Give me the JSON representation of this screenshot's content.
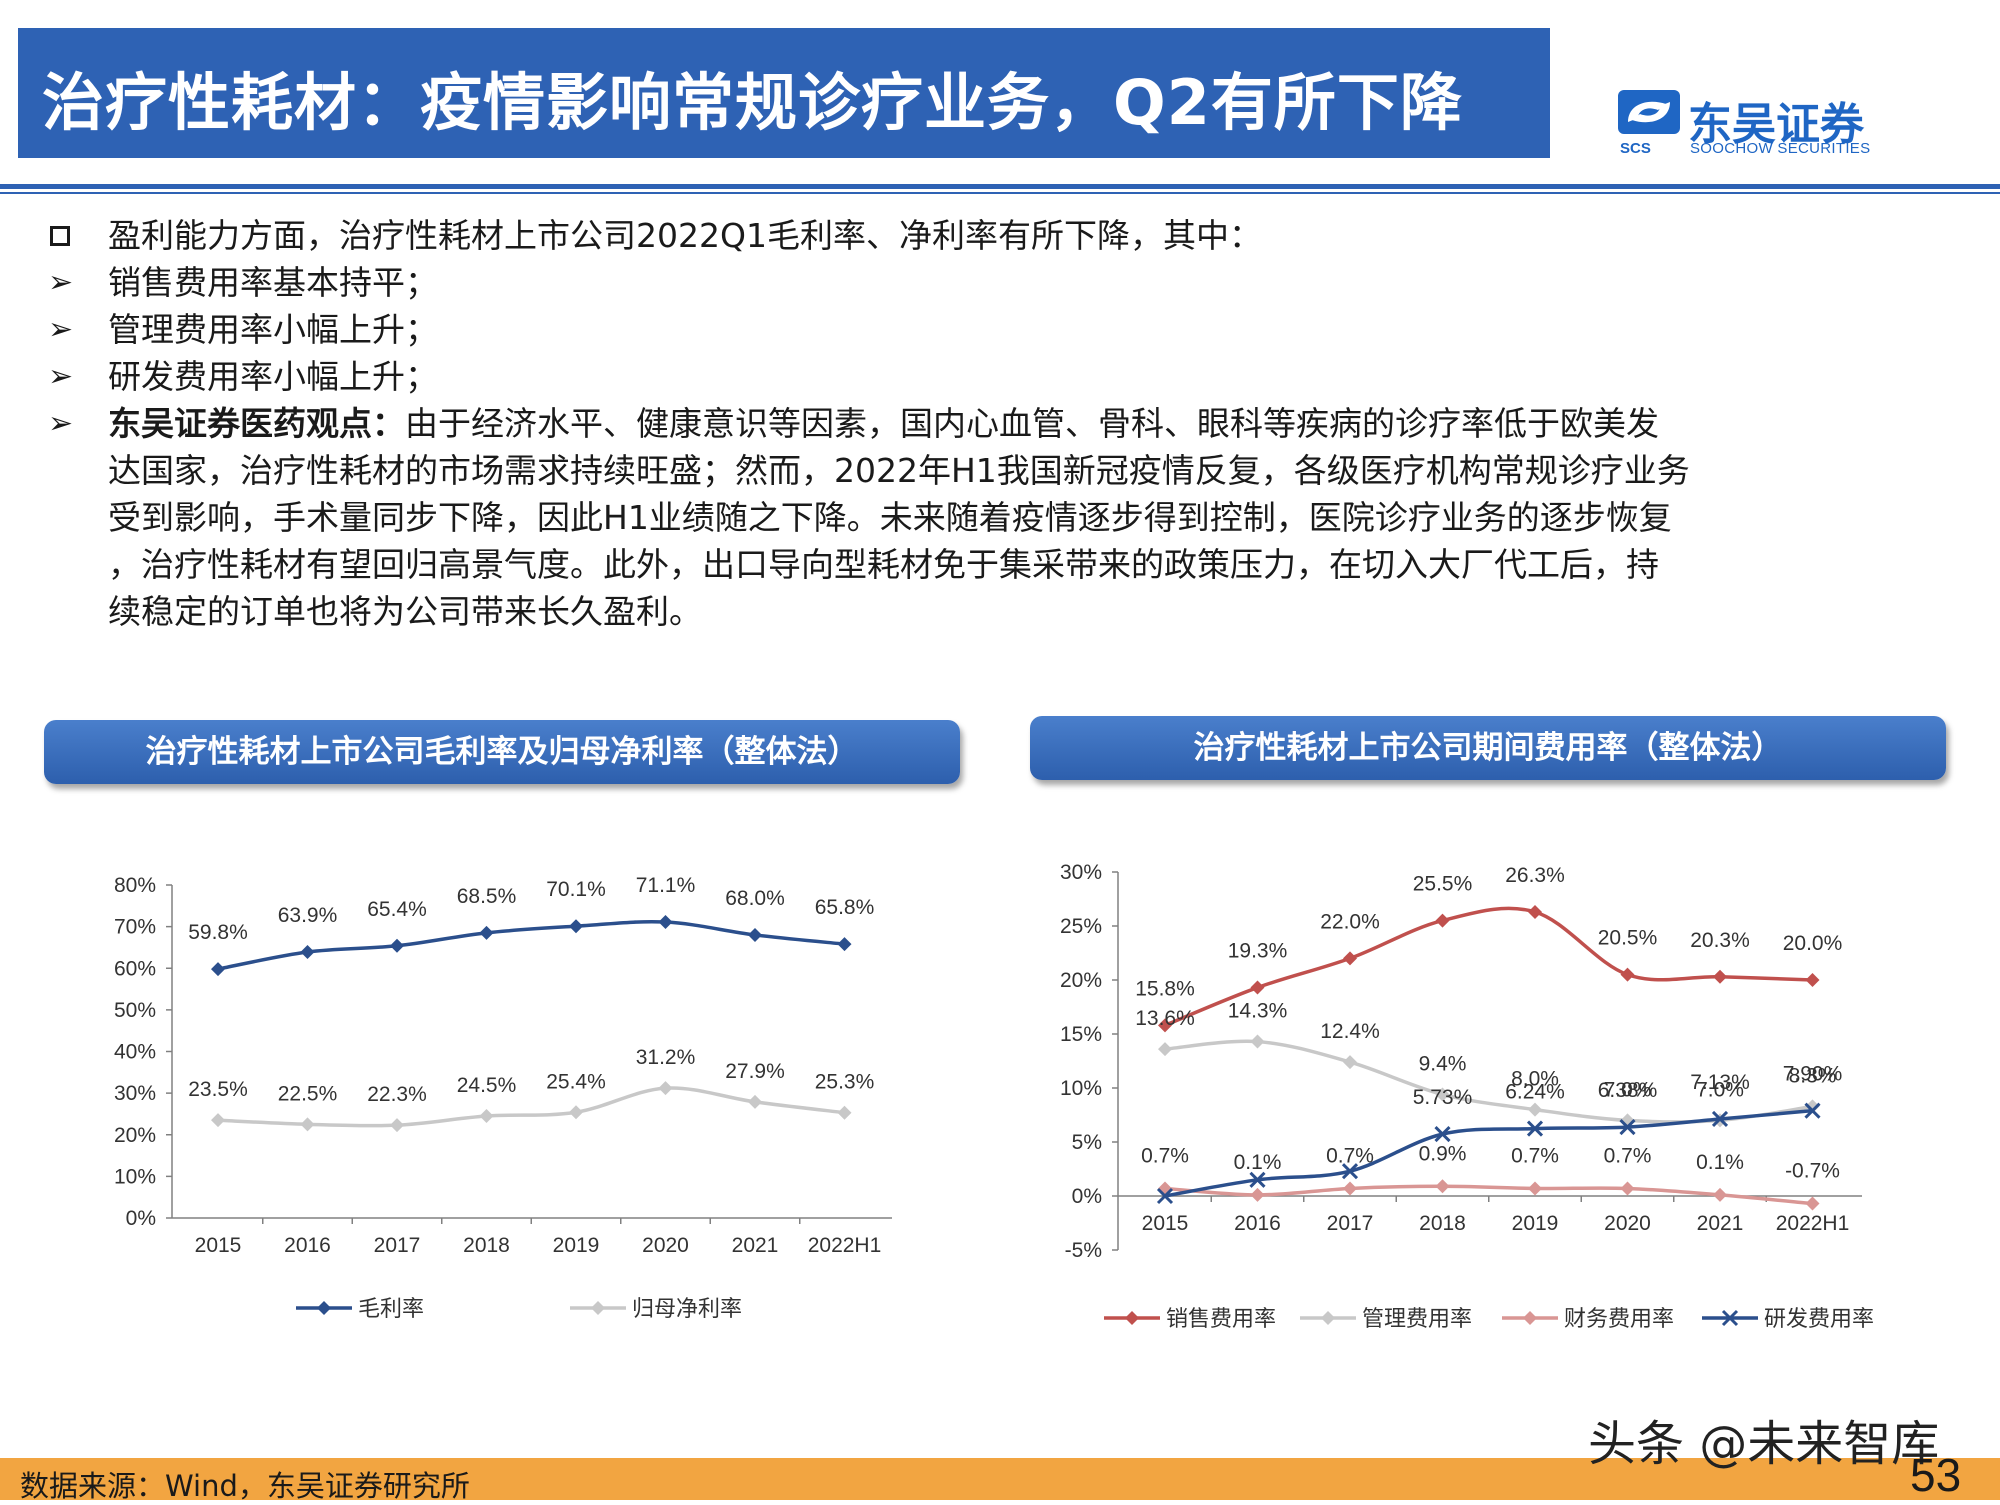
{
  "header": {
    "title": "治疗性耗材：疫情影响常规诊疗业务，Q2有所下降"
  },
  "logo": {
    "name_cn": "东吴证券",
    "name_en": "SOOCHOW SECURITIES",
    "abbr": "SCS"
  },
  "body": {
    "intro": "盈利能力方面，治疗性耗材上市公司2022Q1毛利率、净利率有所下降，其中：",
    "points": [
      "销售费用率基本持平；",
      "管理费用率小幅上升；",
      "研发费用率小幅上升；"
    ],
    "view_label": "东吴证券医药观点：",
    "view_lines": [
      "由于经济水平、健康意识等因素，国内心血管、骨科、眼科等疾病的诊疗率低于欧美发",
      "达国家，治疗性耗材的市场需求持续旺盛；然而，2022年H1我国新冠疫情反复，各级医疗机构常规诊疗业务",
      "受到影响，手术量同步下降，因此H1业绩随之下降。未来随着疫情逐步得到控制，医院诊疗业务的逐步恢复",
      "，治疗性耗材有望回归高景气度。此外，出口导向型耗材免于集采带来的政策压力，在切入大厂代工后，持",
      "续稳定的订单也将为公司带来长久盈利。"
    ]
  },
  "footer": {
    "source": "数据来源：Wind，东吴证券研究所",
    "page": "53"
  },
  "watermark": "头条 @未来智库",
  "chart_data": [
    {
      "type": "line",
      "title": "治疗性耗材上市公司毛利率及归母净利率（整体法）",
      "categories": [
        "2015",
        "2016",
        "2017",
        "2018",
        "2019",
        "2020",
        "2021",
        "2022H1"
      ],
      "ylim": [
        0,
        80
      ],
      "yticks": [
        "0%",
        "10%",
        "20%",
        "30%",
        "40%",
        "50%",
        "60%",
        "70%",
        "80%"
      ],
      "legend_position": "bottom",
      "series": [
        {
          "name": "毛利率",
          "color": "#2b4f8c",
          "marker": "diamond",
          "values": [
            59.8,
            63.9,
            65.4,
            68.5,
            70.1,
            71.1,
            68.0,
            65.8
          ],
          "labels": [
            "59.8%",
            "63.9%",
            "65.4%",
            "68.5%",
            "70.1%",
            "71.1%",
            "68.0%",
            "65.8%"
          ]
        },
        {
          "name": "归母净利率",
          "color": "#c8c8c8",
          "marker": "diamond",
          "values": [
            23.5,
            22.5,
            22.3,
            24.5,
            25.4,
            31.2,
            27.9,
            25.3
          ],
          "labels": [
            "23.5%",
            "22.5%",
            "22.3%",
            "24.5%",
            "25.4%",
            "31.2%",
            "27.9%",
            "25.3%"
          ]
        }
      ]
    },
    {
      "type": "line",
      "title": "治疗性耗材上市公司期间费用率（整体法）",
      "categories": [
        "2015",
        "2016",
        "2017",
        "2018",
        "2019",
        "2020",
        "2021",
        "2022H1"
      ],
      "ylim": [
        -5,
        30
      ],
      "yticks": [
        "-5%",
        "0%",
        "5%",
        "10%",
        "15%",
        "20%",
        "25%",
        "30%"
      ],
      "legend_position": "bottom",
      "series": [
        {
          "name": "销售费用率",
          "color": "#c0504d",
          "marker": "diamond",
          "values": [
            15.8,
            19.3,
            22.0,
            25.5,
            26.3,
            20.5,
            20.3,
            20.0
          ],
          "labels": [
            "15.8%",
            "19.3%",
            "22.0%",
            "25.5%",
            "26.3%",
            "20.5%",
            "20.3%",
            "20.0%"
          ]
        },
        {
          "name": "管理费用率",
          "color": "#c8c8c8",
          "marker": "diamond",
          "values": [
            13.6,
            14.3,
            12.4,
            9.4,
            8.0,
            7.0,
            7.0,
            8.3
          ],
          "labels": [
            "13.6%",
            "14.3%",
            "12.4%",
            "9.4%",
            "8.0%",
            "7.0%",
            "7.0%",
            "8.3%"
          ]
        },
        {
          "name": "财务费用率",
          "color": "#d99694",
          "marker": "diamond",
          "values": [
            0.7,
            0.1,
            0.7,
            0.9,
            0.7,
            0.7,
            0.1,
            -0.7
          ],
          "labels": [
            "0.7%",
            "0.1%",
            "0.7%",
            "0.9%",
            "0.7%",
            "0.7%",
            "0.1%",
            "-0.7%"
          ]
        },
        {
          "name": "研发费用率",
          "color": "#2b4f8c",
          "marker": "x",
          "values": [
            0.0,
            1.5,
            2.3,
            5.73,
            6.24,
            6.38,
            7.13,
            7.9
          ],
          "labels": [
            "",
            "",
            "",
            "5.73%",
            "6.24%",
            "6.38%",
            "7.13%",
            "7.90%"
          ]
        }
      ]
    }
  ]
}
